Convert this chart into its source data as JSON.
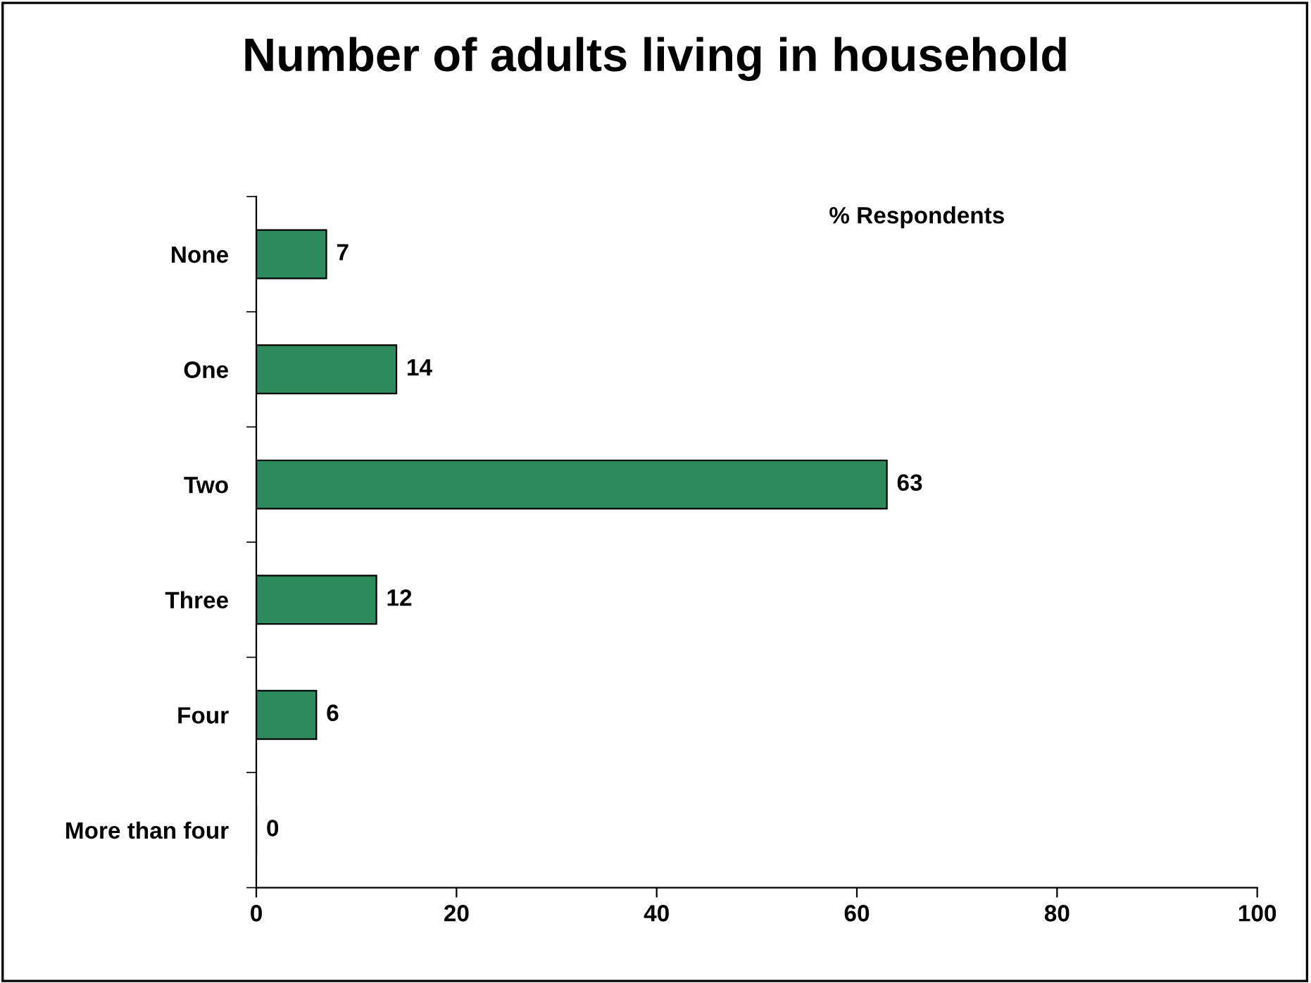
{
  "chart_data": {
    "type": "bar",
    "title": "Number of adults living in household",
    "orientation": "horizontal",
    "categories": [
      "None",
      "One",
      "Two",
      "Three",
      "Four",
      "More than four"
    ],
    "values": [
      7,
      14,
      63,
      12,
      6,
      0
    ],
    "color": "#2e8a5c",
    "xlim": [
      0,
      100
    ],
    "xticks": [
      0,
      20,
      40,
      60,
      80,
      100
    ],
    "data_labels": true,
    "grid": false,
    "legend": false,
    "annotations": [
      "% Respondents"
    ]
  }
}
